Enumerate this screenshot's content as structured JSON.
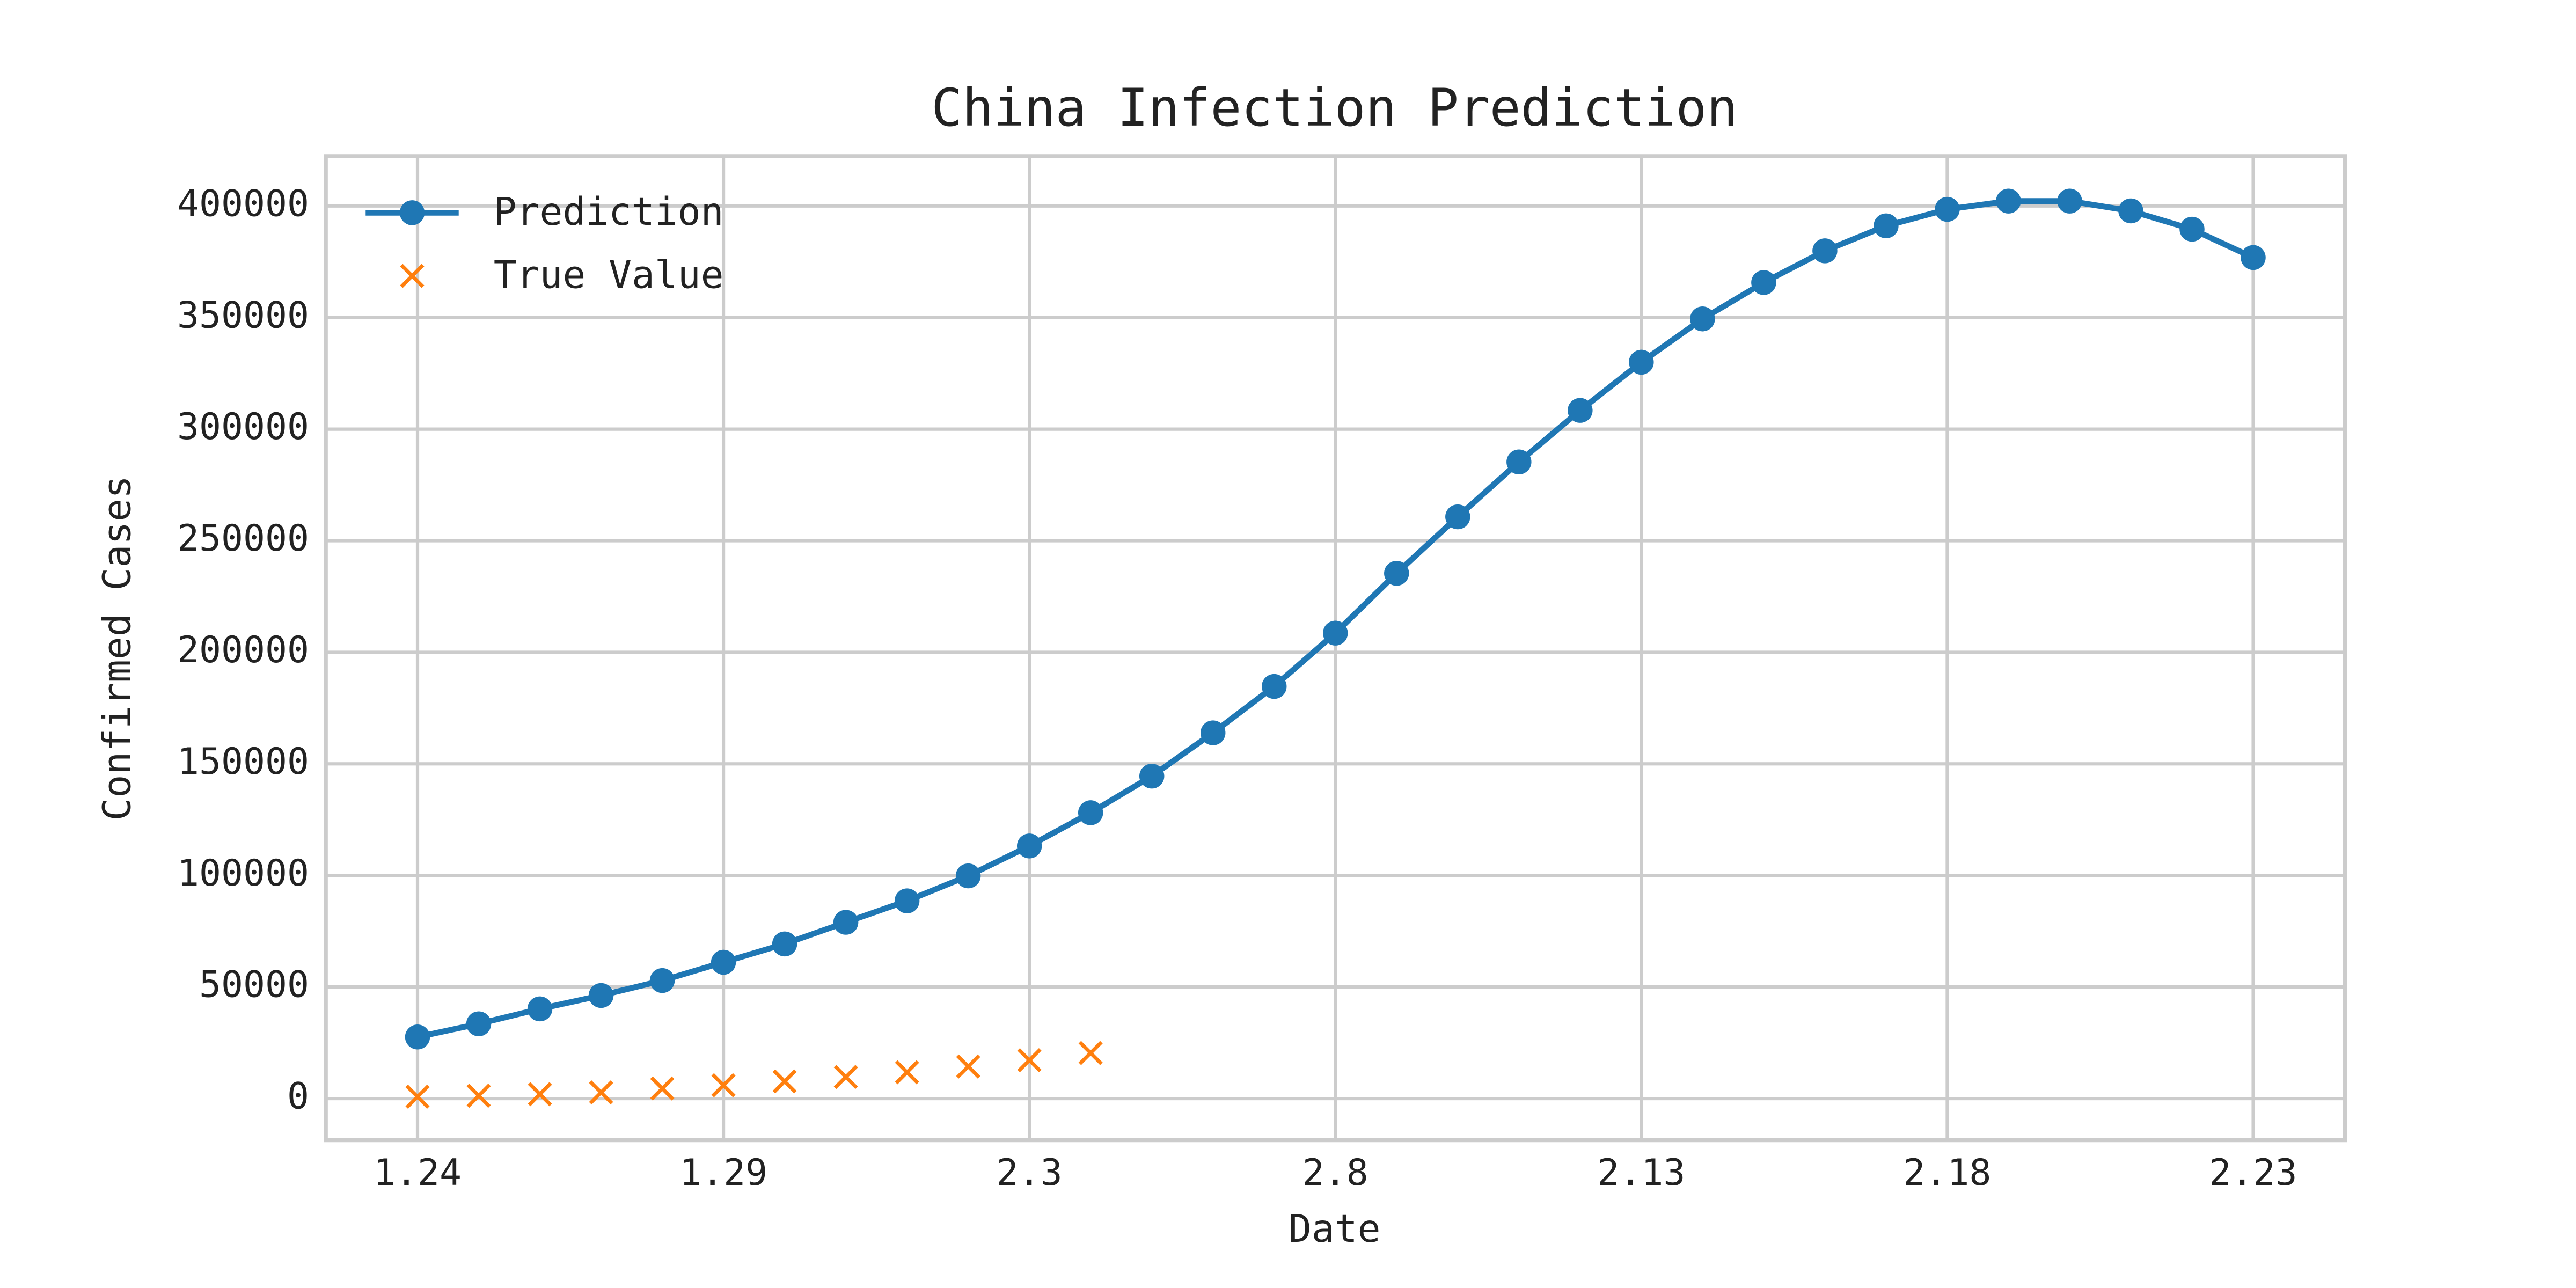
{
  "chart_data": {
    "type": "line",
    "title": "China Infection Prediction",
    "xlabel": "Date",
    "ylabel": "Confirmed Cases",
    "categories": [
      "1.24",
      null,
      null,
      null,
      null,
      "1.29",
      null,
      null,
      null,
      null,
      "2.3",
      null,
      null,
      null,
      null,
      "2.8",
      null,
      null,
      null,
      null,
      "2.13",
      null,
      null,
      null,
      null,
      "2.18",
      null,
      null,
      null,
      null,
      "2.23"
    ],
    "series": [
      {
        "name": "Prediction",
        "color": "#1f77b4",
        "marker": "o",
        "linestyle": "-",
        "values": [
          27600,
          33500,
          40200,
          46200,
          52900,
          61100,
          69300,
          79000,
          88600,
          99800,
          113200,
          128100,
          144500,
          163900,
          184700,
          208600,
          235400,
          260700,
          285300,
          308400,
          330000,
          349400,
          365700,
          379900,
          391100,
          398500,
          402200,
          402200,
          397800,
          389600,
          376900
        ]
      },
      {
        "name": "True Value",
        "color": "#ff7f0e",
        "marker": "x",
        "linestyle": "none",
        "values": [
          830,
          1287,
          1975,
          2744,
          4515,
          5974,
          7711,
          9692,
          11791,
          14380,
          17205,
          20438,
          null,
          null,
          null,
          null,
          null,
          null,
          null,
          null,
          null,
          null,
          null,
          null,
          null,
          null,
          null,
          null,
          null,
          null,
          null
        ]
      }
    ],
    "ylim": [
      -18600,
      422300
    ],
    "yticks": [
      0,
      50000,
      100000,
      150000,
      200000,
      250000,
      300000,
      350000,
      400000
    ],
    "grid": true,
    "legend": "upper left"
  }
}
